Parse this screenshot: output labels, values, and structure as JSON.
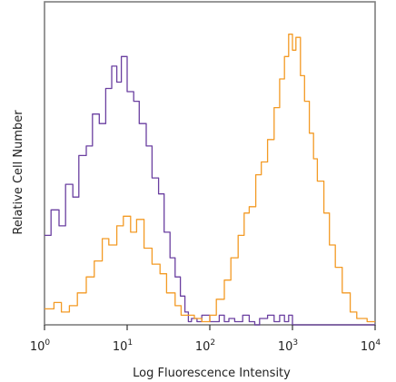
{
  "chart_data": {
    "type": "line",
    "title": "",
    "xlabel": "Log Fluorescence Intensity",
    "ylabel": "Relative Cell Number",
    "x_scale": "log",
    "xlim": [
      1,
      10000
    ],
    "ylim": [
      0,
      100
    ],
    "grid": false,
    "xticks": [
      {
        "value": 1,
        "base": "10",
        "exp": "0"
      },
      {
        "value": 10,
        "base": "10",
        "exp": "1"
      },
      {
        "value": 100,
        "base": "10",
        "exp": "2"
      },
      {
        "value": 1000,
        "base": "10",
        "exp": "3"
      },
      {
        "value": 10000,
        "base": "10",
        "exp": "4"
      }
    ],
    "series": [
      {
        "color": "#6a3fa0",
        "x": [
          1.0,
          1.2,
          1.5,
          1.8,
          2.2,
          2.6,
          3.2,
          3.8,
          4.6,
          5.5,
          6.5,
          7.5,
          8.5,
          10,
          12,
          14,
          17,
          20,
          24,
          28,
          33,
          38,
          44,
          50,
          55,
          60,
          70,
          80,
          100,
          130,
          150,
          170,
          200,
          250,
          300,
          350,
          400,
          500,
          600,
          700,
          800,
          900,
          1000,
          1500,
          2000,
          3000,
          5000,
          10000
        ],
        "y": [
          28,
          36,
          31,
          44,
          40,
          53,
          56,
          66,
          63,
          74,
          81,
          76,
          84,
          73,
          70,
          63,
          56,
          46,
          41,
          29,
          21,
          15,
          9,
          4,
          1,
          2,
          1,
          3,
          1,
          3,
          1,
          2,
          1,
          3,
          1,
          0,
          2,
          3,
          1,
          3,
          1,
          3,
          0,
          0,
          0,
          0,
          0,
          0
        ]
      },
      {
        "color": "#f39a24",
        "x": [
          1.0,
          1.3,
          1.6,
          2.0,
          2.5,
          3.2,
          4.0,
          5.0,
          6.0,
          7.5,
          9.0,
          11,
          13,
          16,
          20,
          25,
          30,
          38,
          45,
          55,
          65,
          80,
          100,
          120,
          150,
          180,
          220,
          260,
          300,
          360,
          420,
          500,
          600,
          700,
          800,
          900,
          1000,
          1100,
          1250,
          1400,
          1600,
          1800,
          2000,
          2400,
          2800,
          3300,
          4000,
          5000,
          6000,
          8000,
          10000
        ],
        "y": [
          5,
          7,
          4,
          6,
          10,
          15,
          20,
          27,
          25,
          31,
          34,
          29,
          33,
          24,
          19,
          16,
          10,
          6,
          3,
          3,
          2,
          1,
          3,
          8,
          14,
          21,
          28,
          35,
          37,
          47,
          51,
          58,
          68,
          77,
          84,
          91,
          86,
          90,
          78,
          70,
          60,
          52,
          45,
          35,
          25,
          18,
          10,
          4,
          2,
          1,
          1
        ]
      }
    ]
  }
}
